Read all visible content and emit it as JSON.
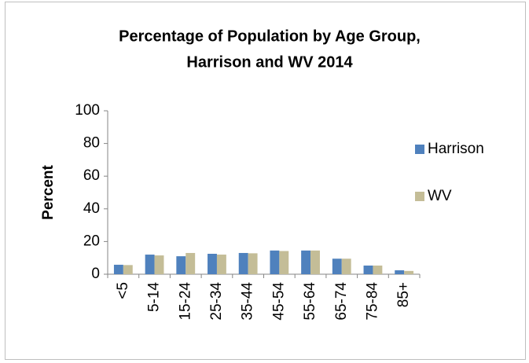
{
  "chart_data": {
    "type": "bar",
    "title": [
      "Percentage of Population by Age Group,",
      "Harrison and WV 2014"
    ],
    "y_label": "Percent",
    "categories": [
      "<5",
      "5-14",
      "15-24",
      "25-34",
      "35-44",
      "45-54",
      "55-64",
      "65-74",
      "75-84",
      "85+"
    ],
    "series": [
      {
        "name": "Harrison",
        "color": "#4f81bd",
        "values": [
          5.8,
          12,
          11,
          12.5,
          13,
          14.5,
          14.5,
          9.5,
          5.3,
          2.4
        ]
      },
      {
        "name": "WV",
        "color": "#c4bd97",
        "values": [
          5.6,
          11.5,
          13,
          12,
          12.8,
          14.2,
          14.5,
          9.5,
          5.3,
          2
        ]
      }
    ],
    "ylim": [
      0,
      100
    ],
    "yticks": [
      0,
      20,
      40,
      60,
      80,
      100
    ],
    "grid": false,
    "legend": "right"
  }
}
